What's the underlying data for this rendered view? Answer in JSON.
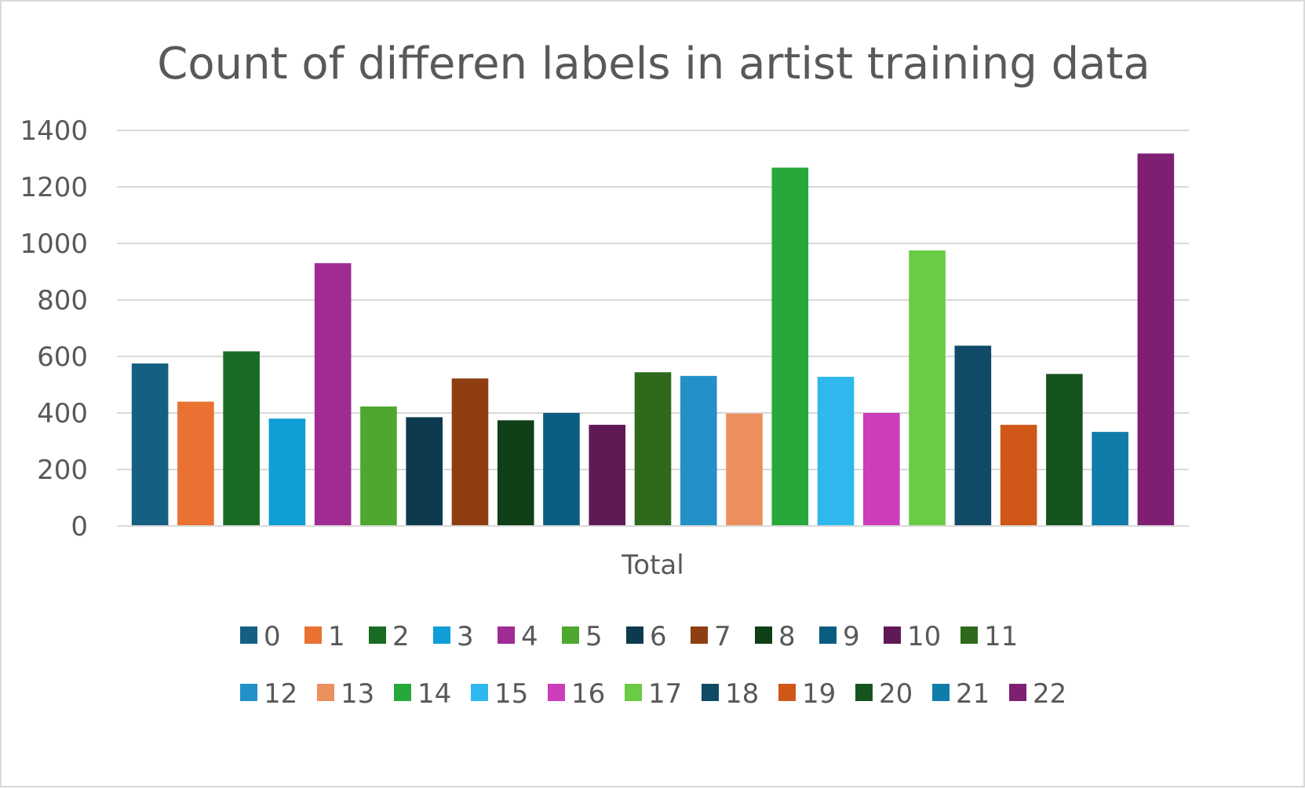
{
  "chart_data": {
    "type": "bar",
    "title": "Count of differen labels in artist training data",
    "categories": [
      "Total"
    ],
    "xlabel": "",
    "ylabel": "",
    "ylim": [
      0,
      1400
    ],
    "yticks": [
      0,
      200,
      400,
      600,
      800,
      1000,
      1200,
      1400
    ],
    "grid": true,
    "legend_position": "bottom",
    "series": [
      {
        "name": "0",
        "values": [
          575
        ],
        "color": "#156082"
      },
      {
        "name": "1",
        "values": [
          440
        ],
        "color": "#E97132"
      },
      {
        "name": "2",
        "values": [
          618
        ],
        "color": "#196B24"
      },
      {
        "name": "3",
        "values": [
          380
        ],
        "color": "#0F9ED5"
      },
      {
        "name": "4",
        "values": [
          930
        ],
        "color": "#A02B93"
      },
      {
        "name": "5",
        "values": [
          423
        ],
        "color": "#4EA72E"
      },
      {
        "name": "6",
        "values": [
          385
        ],
        "color": "#0D3A4E"
      },
      {
        "name": "7",
        "values": [
          522
        ],
        "color": "#8F3E12"
      },
      {
        "name": "8",
        "values": [
          374
        ],
        "color": "#0F3F17"
      },
      {
        "name": "9",
        "values": [
          400
        ],
        "color": "#0B5D80"
      },
      {
        "name": "10",
        "values": [
          358
        ],
        "color": "#5F1A55"
      },
      {
        "name": "11",
        "values": [
          544
        ],
        "color": "#2F6A1C"
      },
      {
        "name": "12",
        "values": [
          531
        ],
        "color": "#2390C8"
      },
      {
        "name": "13",
        "values": [
          398
        ],
        "color": "#EC8F5F"
      },
      {
        "name": "14",
        "values": [
          1268
        ],
        "color": "#27A83A"
      },
      {
        "name": "15",
        "values": [
          528
        ],
        "color": "#2FB8EE"
      },
      {
        "name": "16",
        "values": [
          400
        ],
        "color": "#CB3DBA"
      },
      {
        "name": "17",
        "values": [
          975
        ],
        "color": "#6ACB45"
      },
      {
        "name": "18",
        "values": [
          638
        ],
        "color": "#114A66"
      },
      {
        "name": "19",
        "values": [
          358
        ],
        "color": "#CF5718"
      },
      {
        "name": "20",
        "values": [
          538
        ],
        "color": "#16541F"
      },
      {
        "name": "21",
        "values": [
          333
        ],
        "color": "#107CAA"
      },
      {
        "name": "22",
        "values": [
          1318
        ],
        "color": "#7F1F72"
      }
    ]
  }
}
